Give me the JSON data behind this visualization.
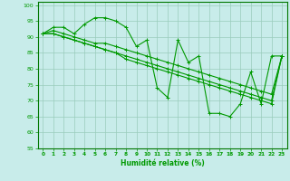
{
  "xlabel": "Humidité relative (%)",
  "background_color": "#c8ecea",
  "grid_color": "#99ccbb",
  "line_color": "#009900",
  "xlim": [
    -0.5,
    23.5
  ],
  "ylim": [
    55,
    101
  ],
  "yticks": [
    55,
    60,
    65,
    70,
    75,
    80,
    85,
    90,
    95,
    100
  ],
  "xticks": [
    0,
    1,
    2,
    3,
    4,
    5,
    6,
    7,
    8,
    9,
    10,
    11,
    12,
    13,
    14,
    15,
    16,
    17,
    18,
    19,
    20,
    21,
    22,
    23
  ],
  "series1": [
    91,
    93,
    93,
    91,
    94,
    96,
    96,
    95,
    93,
    87,
    89,
    74,
    71,
    89,
    82,
    84,
    66,
    66,
    65,
    69,
    79,
    69,
    84,
    84
  ],
  "series2": [
    91,
    92,
    91,
    90,
    89,
    88,
    88,
    87,
    86,
    85,
    84,
    83,
    82,
    81,
    80,
    79,
    78,
    77,
    76,
    75,
    74,
    73,
    72,
    84
  ],
  "series3": [
    91,
    91,
    90,
    89,
    88,
    87,
    86,
    85,
    84,
    83,
    82,
    81,
    80,
    79,
    78,
    77,
    76,
    75,
    74,
    73,
    72,
    71,
    70,
    84
  ],
  "series4": [
    91,
    91,
    90,
    89,
    88,
    87,
    86,
    85,
    83,
    82,
    81,
    80,
    79,
    78,
    77,
    76,
    75,
    74,
    73,
    72,
    71,
    70,
    69,
    84
  ]
}
